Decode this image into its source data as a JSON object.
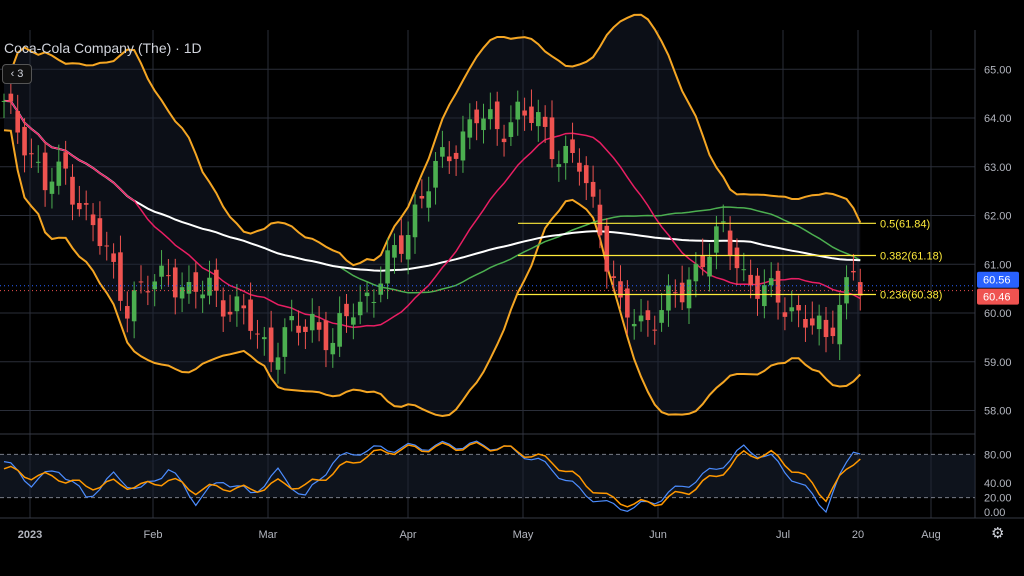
{
  "header": {
    "title": "Coca-Cola Company (The) · 1D",
    "indicator_count": "3"
  },
  "settings_icon": "gear-icon",
  "colors": {
    "background": "#000000",
    "grid": "#2a2e39",
    "up": "#26a69a",
    "up_candle": "#4caf50",
    "down": "#ef5350",
    "bollinger": "#f5a623",
    "ma_short": "#e91e63",
    "ma_mid": "#4caf50",
    "ma_long": "#ffffff",
    "fib": "#ffeb3b",
    "stoch_k": "#4c8dff",
    "stoch_d": "#ff9800",
    "last_up": "#2962ff",
    "last_down": "#ef5350"
  },
  "chart_data": {
    "type": "candlestick",
    "title": "Coca-Cola Company (The) · 1D",
    "x_ticks": [
      "2023",
      "Feb",
      "Mar",
      "Apr",
      "May",
      "Jun",
      "Jul",
      "20",
      "Aug"
    ],
    "y_ticks": [
      "65.00",
      "64.00",
      "63.00",
      "62.00",
      "61.00",
      "60.00",
      "59.00",
      "58.00"
    ],
    "ylim": [
      57.6,
      65.6
    ],
    "fib_levels": [
      {
        "label": "0.5(61.84)",
        "value": 61.84
      },
      {
        "label": "0.382(61.18)",
        "value": 61.18
      },
      {
        "label": "0.236(60.38)",
        "value": 60.38
      }
    ],
    "last_price_tags": [
      {
        "label": "60.56",
        "value": 60.56,
        "kind": "up"
      },
      {
        "label": "60.46",
        "value": 60.46,
        "kind": "down"
      }
    ],
    "close_path": [
      [
        0,
        64.2
      ],
      [
        3,
        63.6
      ],
      [
        6,
        62.6
      ],
      [
        9,
        62.9
      ],
      [
        12,
        62.0
      ],
      [
        15,
        61.2
      ],
      [
        18,
        60.2
      ],
      [
        21,
        60.5
      ],
      [
        24,
        60.9
      ],
      [
        27,
        60.3
      ],
      [
        30,
        60.6
      ],
      [
        33,
        60.1
      ],
      [
        36,
        59.8
      ],
      [
        39,
        59.2
      ],
      [
        42,
        59.6
      ],
      [
        45,
        59.9
      ],
      [
        48,
        59.3
      ],
      [
        51,
        60.2
      ],
      [
        54,
        60.4
      ],
      [
        57,
        61.2
      ],
      [
        60,
        62.1
      ],
      [
        63,
        62.9
      ],
      [
        66,
        63.5
      ],
      [
        69,
        64.0
      ],
      [
        72,
        63.8
      ],
      [
        75,
        64.1
      ],
      [
        78,
        63.9
      ],
      [
        81,
        63.3
      ],
      [
        84,
        63.0
      ],
      [
        87,
        61.8
      ],
      [
        90,
        60.0
      ],
      [
        93,
        59.8
      ],
      [
        96,
        60.1
      ],
      [
        99,
        60.4
      ],
      [
        102,
        61.2
      ],
      [
        105,
        61.6
      ],
      [
        108,
        60.8
      ],
      [
        111,
        60.4
      ],
      [
        114,
        60.2
      ],
      [
        117,
        59.9
      ],
      [
        120,
        59.4
      ],
      [
        122,
        60.3
      ],
      [
        124,
        60.9
      ],
      [
        125,
        60.46
      ]
    ],
    "stochastic": {
      "ylim": [
        0,
        100
      ],
      "y_ticks": [
        "80.00",
        "40.00",
        "20.00",
        "0.00"
      ],
      "k_path": [
        [
          0,
          70
        ],
        [
          4,
          40
        ],
        [
          8,
          60
        ],
        [
          12,
          20
        ],
        [
          16,
          50
        ],
        [
          20,
          30
        ],
        [
          24,
          60
        ],
        [
          28,
          15
        ],
        [
          32,
          45
        ],
        [
          36,
          25
        ],
        [
          40,
          55
        ],
        [
          44,
          20
        ],
        [
          48,
          70
        ],
        [
          52,
          85
        ],
        [
          56,
          88
        ],
        [
          60,
          90
        ],
        [
          64,
          92
        ],
        [
          68,
          93
        ],
        [
          72,
          91
        ],
        [
          76,
          80
        ],
        [
          80,
          60
        ],
        [
          84,
          30
        ],
        [
          88,
          10
        ],
        [
          92,
          5
        ],
        [
          96,
          20
        ],
        [
          100,
          40
        ],
        [
          104,
          60
        ],
        [
          108,
          88
        ],
        [
          112,
          75
        ],
        [
          116,
          40
        ],
        [
          120,
          5
        ],
        [
          124,
          88
        ],
        [
          125,
          85
        ]
      ],
      "d_path": [
        [
          0,
          60
        ],
        [
          4,
          50
        ],
        [
          8,
          48
        ],
        [
          12,
          35
        ],
        [
          16,
          40
        ],
        [
          20,
          35
        ],
        [
          24,
          45
        ],
        [
          28,
          30
        ],
        [
          32,
          35
        ],
        [
          36,
          30
        ],
        [
          40,
          40
        ],
        [
          44,
          35
        ],
        [
          48,
          55
        ],
        [
          52,
          75
        ],
        [
          56,
          85
        ],
        [
          60,
          88
        ],
        [
          64,
          90
        ],
        [
          68,
          91
        ],
        [
          72,
          90
        ],
        [
          76,
          82
        ],
        [
          80,
          70
        ],
        [
          84,
          45
        ],
        [
          88,
          20
        ],
        [
          92,
          10
        ],
        [
          96,
          15
        ],
        [
          100,
          30
        ],
        [
          104,
          50
        ],
        [
          108,
          80
        ],
        [
          112,
          80
        ],
        [
          116,
          55
        ],
        [
          120,
          20
        ],
        [
          124,
          70
        ],
        [
          125,
          78
        ]
      ]
    }
  }
}
